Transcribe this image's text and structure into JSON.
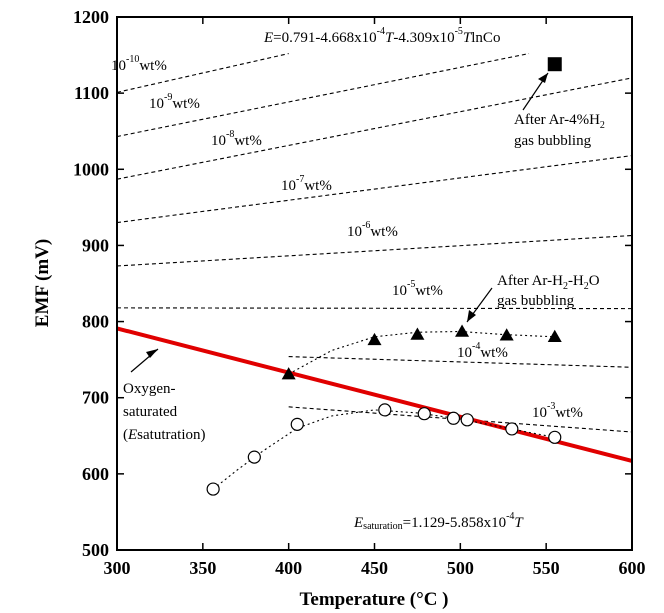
{
  "chart_data": {
    "type": "scatter",
    "xlabel": "Temperature (°C )",
    "ylabel": "EMF (mV)",
    "xlim": [
      300,
      600
    ],
    "ylim": [
      500,
      1200
    ],
    "xticks": [
      300,
      350,
      400,
      450,
      500,
      550,
      600
    ],
    "yticks": [
      500,
      600,
      700,
      800,
      900,
      1000,
      1100,
      1200
    ],
    "grid": false,
    "iso_concentration_lines": {
      "equation": {
        "prefix": "=0.791-4.668x10",
        "exp1": "-4",
        "mid": "-4.309x10",
        "exp2": "-5",
        "suffix": "lnCo"
      },
      "lines": [
        {
          "base": "10",
          "exp": "-10",
          "unit": "wt%",
          "x": [
            300,
            400
          ],
          "y": [
            1101,
            1152
          ]
        },
        {
          "base": "10",
          "exp": "-9",
          "unit": "wt%",
          "x": [
            300,
            540
          ],
          "y": [
            1043,
            1152
          ]
        },
        {
          "base": "10",
          "exp": "-8",
          "unit": "wt%",
          "x": [
            300,
            600
          ],
          "y": [
            987,
            1120
          ]
        },
        {
          "base": "10",
          "exp": "-7",
          "unit": "wt%",
          "x": [
            300,
            600
          ],
          "y": [
            930,
            1018
          ]
        },
        {
          "base": "10",
          "exp": "-6",
          "unit": "wt%",
          "x": [
            300,
            600
          ],
          "y": [
            873,
            913
          ]
        },
        {
          "base": "10",
          "exp": "-5",
          "unit": "wt%",
          "x": [
            300,
            600
          ],
          "y": [
            818,
            817
          ]
        },
        {
          "base": "10",
          "exp": "-4",
          "unit": "wt%",
          "x": [
            400,
            600
          ],
          "y": [
            754,
            740
          ]
        },
        {
          "base": "10",
          "exp": "-3",
          "unit": "wt%",
          "x": [
            400,
            600
          ],
          "y": [
            688,
            655
          ]
        }
      ]
    },
    "saturation_line": {
      "label_lines": [
        "Oxygen-",
        "saturated"
      ],
      "label_paren": {
        "open": "(",
        "italic": "E",
        "rest": "satutration)"
      },
      "equation": {
        "italic": "E",
        "sub": "saturation",
        "rest": "=1.129-5.858x10",
        "exp": "-4",
        "var": "T"
      },
      "color": "#e00000",
      "x": [
        300,
        600
      ],
      "y": [
        791,
        617
      ]
    },
    "series": [
      {
        "marker": "filled-triangle",
        "x": [
          400,
          450,
          475,
          501,
          527,
          555
        ],
        "y": [
          731,
          776,
          783,
          787,
          782,
          780
        ],
        "fit": {
          "x": [
            400,
            425,
            450,
            475,
            500,
            525,
            555
          ],
          "y": [
            731,
            762,
            780,
            786,
            787,
            783,
            780
          ]
        },
        "annotation": {
          "lines": [
            "After Ar-H",
            "-H",
            "O",
            "gas bubbling"
          ],
          "subs": [
            "2",
            "2"
          ]
        }
      },
      {
        "marker": "filled-square",
        "x": [
          555
        ],
        "y": [
          1138
        ],
        "annotation": {
          "line1_prefix": "After Ar-4%H",
          "line1_sub": "2",
          "line2": "gas bubbling"
        }
      },
      {
        "marker": "open-circle",
        "x": [
          356,
          380,
          405,
          456,
          479,
          496,
          504,
          530,
          555
        ],
        "y": [
          580,
          622,
          665,
          684,
          679,
          673,
          671,
          659,
          648
        ],
        "fit": {
          "x": [
            356,
            370,
            385,
            405,
            425,
            450,
            475,
            500,
            525,
            555
          ],
          "y": [
            580,
            605,
            630,
            660,
            676,
            684,
            680,
            672,
            661,
            648
          ]
        }
      }
    ]
  }
}
